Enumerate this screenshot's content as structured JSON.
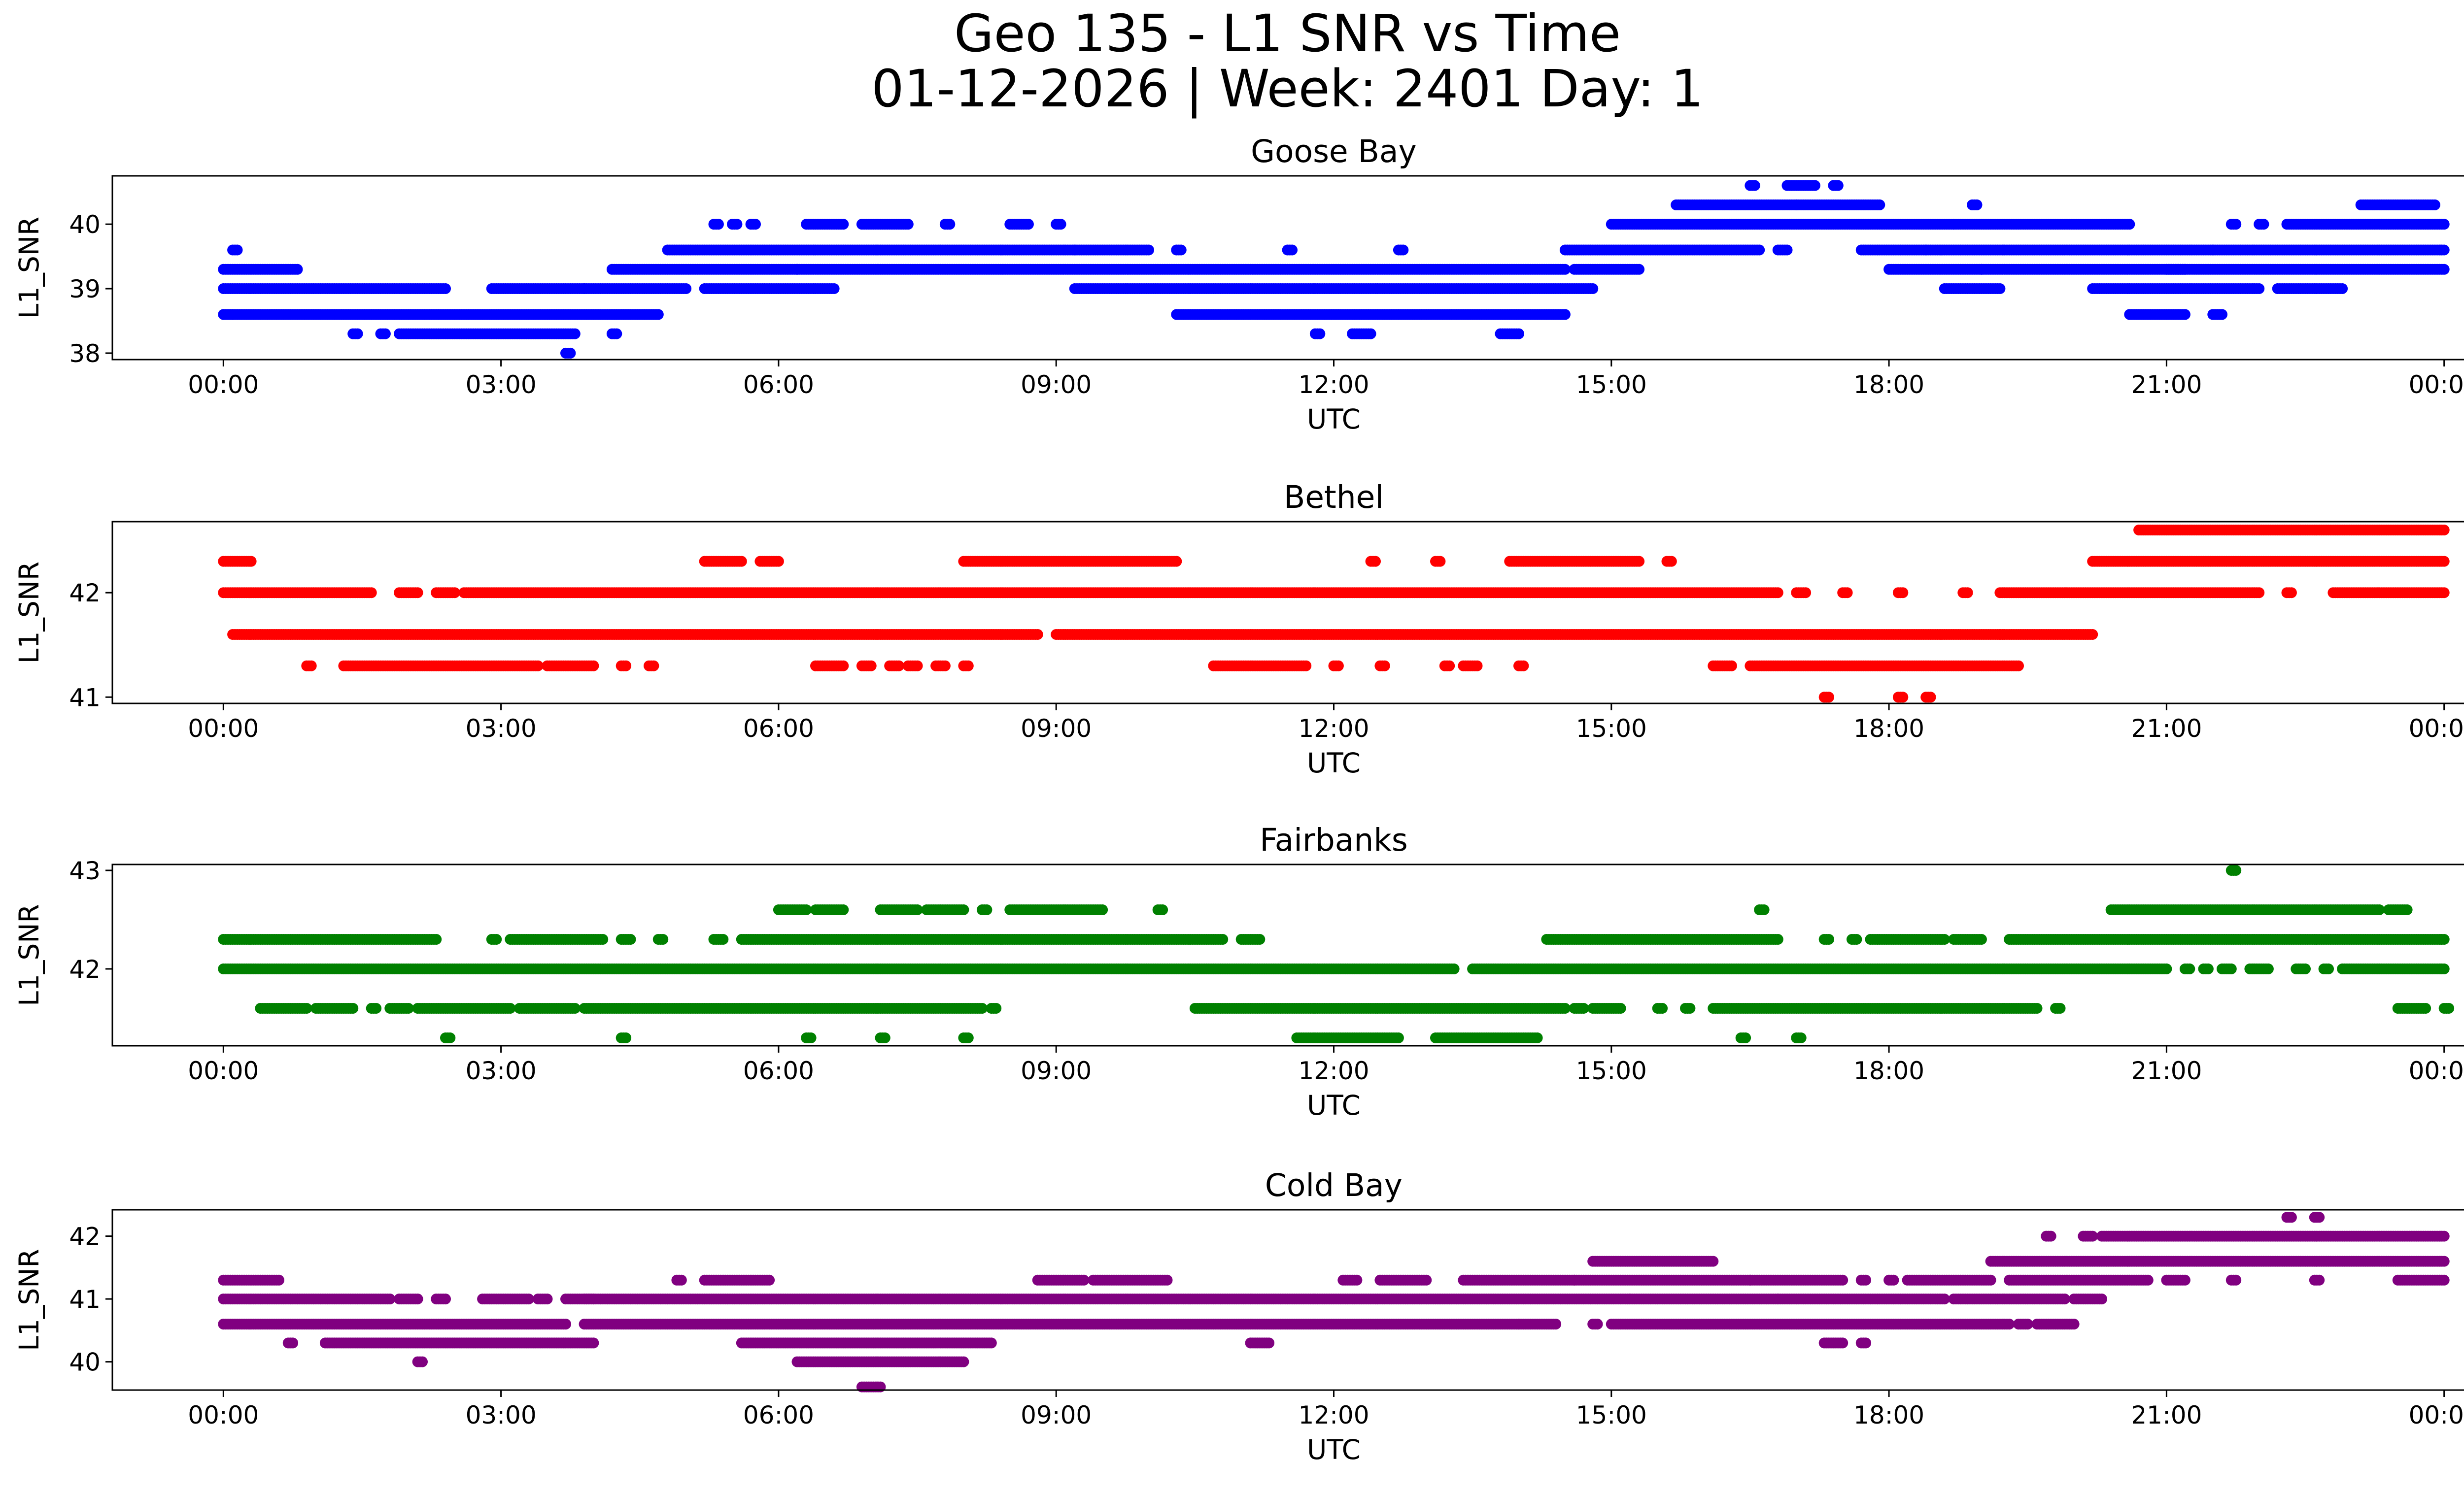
{
  "figure": {
    "title_line1": "Geo 135 - L1 SNR vs Time",
    "title_line2": "01-12-2026 | Week: 2401 Day: 1"
  },
  "chart_data": [
    {
      "type": "scatter",
      "title": "Goose Bay",
      "xlabel": "UTC",
      "ylabel": "L1_SNR",
      "color": "#0000ff",
      "xlim": [
        -1.2,
        25.2
      ],
      "ylim": [
        37.9,
        40.75
      ],
      "xticks": [
        0,
        3,
        6,
        9,
        12,
        15,
        18,
        21,
        24
      ],
      "xticklabels": [
        "00:00",
        "03:00",
        "06:00",
        "09:00",
        "12:00",
        "15:00",
        "18:00",
        "21:00",
        "00:00"
      ],
      "yticks": [
        38,
        39,
        40
      ],
      "yticklabels": [
        "38",
        "39",
        "40"
      ],
      "bands": [
        {
          "y": 39.3,
          "x": [
            [
              0,
              0.8
            ],
            [
              4.2,
              6.2
            ],
            [
              6.2,
              14.5
            ],
            [
              14.6,
              15.3
            ],
            [
              18.0,
              19.0
            ],
            [
              19.0,
              21.2
            ],
            [
              21.0,
              24
            ]
          ]
        },
        {
          "y": 39.0,
          "x": [
            [
              0,
              2.4
            ],
            [
              2.9,
              3.9
            ],
            [
              3.9,
              5.0
            ],
            [
              5.2,
              6.6
            ],
            [
              9.2,
              14.8
            ],
            [
              18.6,
              19.2
            ],
            [
              20.2,
              22.0
            ],
            [
              22.2,
              22.9
            ]
          ]
        },
        {
          "y": 38.6,
          "x": [
            [
              0,
              0.1
            ],
            [
              0.1,
              4.7
            ],
            [
              10.3,
              14.5
            ],
            [
              20.6,
              21.2
            ],
            [
              21.5,
              21.6
            ]
          ]
        },
        {
          "y": 38.3,
          "x": [
            [
              1.4,
              1.45
            ],
            [
              1.7,
              1.75
            ],
            [
              1.9,
              3.8
            ],
            [
              4.2,
              4.25
            ],
            [
              11.8,
              11.85
            ],
            [
              12.2,
              12.4
            ],
            [
              13.8,
              14.0
            ]
          ]
        },
        {
          "y": 39.6,
          "x": [
            [
              0.1,
              0.15
            ],
            [
              4.8,
              9.2
            ],
            [
              9.2,
              10.0
            ],
            [
              10.3,
              10.35
            ],
            [
              11.5,
              11.55
            ],
            [
              12.7,
              12.75
            ],
            [
              14.5,
              16.6
            ],
            [
              16.8,
              16.9
            ],
            [
              17.7,
              18.4
            ],
            [
              18.4,
              21.5
            ],
            [
              21.5,
              24
            ]
          ]
        },
        {
          "y": 40.0,
          "x": [
            [
              5.3,
              5.35
            ],
            [
              5.5,
              5.55
            ],
            [
              5.7,
              5.75
            ],
            [
              6.3,
              6.7
            ],
            [
              6.9,
              7.4
            ],
            [
              7.8,
              7.85
            ],
            [
              8.5,
              8.7
            ],
            [
              9.0,
              9.05
            ],
            [
              15.0,
              18.7
            ],
            [
              18.7,
              20.6
            ],
            [
              21.7,
              21.75
            ],
            [
              22.0,
              22.05
            ],
            [
              22.3,
              24
            ]
          ]
        },
        {
          "y": 40.3,
          "x": [
            [
              15.7,
              17.0
            ],
            [
              17.0,
              17.9
            ],
            [
              18.9,
              18.95
            ],
            [
              23.1,
              23.9
            ]
          ]
        },
        {
          "y": 40.6,
          "x": [
            [
              16.5,
              16.55
            ],
            [
              16.9,
              17.2
            ],
            [
              17.4,
              17.45
            ]
          ]
        },
        {
          "y": 38.0,
          "x": [
            [
              3.7,
              3.75
            ]
          ]
        }
      ]
    },
    {
      "type": "scatter",
      "title": "Bethel",
      "xlabel": "UTC",
      "ylabel": "L1_SNR",
      "color": "#ff0000",
      "xlim": [
        -1.2,
        25.2
      ],
      "ylim": [
        40.94,
        42.68
      ],
      "xticks": [
        0,
        3,
        6,
        9,
        12,
        15,
        18,
        21,
        24
      ],
      "xticklabels": [
        "00:00",
        "03:00",
        "06:00",
        "09:00",
        "12:00",
        "15:00",
        "18:00",
        "21:00",
        "00:00"
      ],
      "yticks": [
        41,
        42
      ],
      "yticklabels": [
        "41",
        "42"
      ],
      "bands": [
        {
          "y": 42.3,
          "x": [
            [
              0,
              0.3
            ],
            [
              5.2,
              5.6
            ],
            [
              5.8,
              6.0
            ],
            [
              8.0,
              10.3
            ],
            [
              12.4,
              12.45
            ],
            [
              13.1,
              13.15
            ],
            [
              13.9,
              15.3
            ],
            [
              15.6,
              15.65
            ],
            [
              20.2,
              24
            ]
          ]
        },
        {
          "y": 42.0,
          "x": [
            [
              0,
              1.6
            ],
            [
              1.9,
              2.1
            ],
            [
              2.3,
              2.5
            ],
            [
              2.6,
              16.8
            ],
            [
              17.0,
              17.1
            ],
            [
              17.5,
              17.55
            ],
            [
              18.1,
              18.15
            ],
            [
              18.8,
              18.85
            ],
            [
              19.2,
              22.0
            ],
            [
              22.3,
              22.35
            ],
            [
              22.8,
              24
            ]
          ]
        },
        {
          "y": 41.6,
          "x": [
            [
              0.1,
              8.8
            ],
            [
              9.0,
              19.2
            ],
            [
              19.2,
              20.2
            ]
          ]
        },
        {
          "y": 41.3,
          "x": [
            [
              0.9,
              0.95
            ],
            [
              1.3,
              3.4
            ],
            [
              3.5,
              4.0
            ],
            [
              4.3,
              4.35
            ],
            [
              4.6,
              4.65
            ],
            [
              6.4,
              6.7
            ],
            [
              6.9,
              7.0
            ],
            [
              7.2,
              7.3
            ],
            [
              7.4,
              7.5
            ],
            [
              7.7,
              7.8
            ],
            [
              8.0,
              8.05
            ],
            [
              10.7,
              11.7
            ],
            [
              12.0,
              12.05
            ],
            [
              12.5,
              12.55
            ],
            [
              13.2,
              13.25
            ],
            [
              13.4,
              13.55
            ],
            [
              14.0,
              14.05
            ],
            [
              16.1,
              16.3
            ],
            [
              16.5,
              19.4
            ]
          ]
        },
        {
          "y": 42.6,
          "x": [
            [
              20.7,
              24
            ]
          ]
        },
        {
          "y": 41.0,
          "x": [
            [
              17.3,
              17.35
            ],
            [
              18.1,
              18.15
            ],
            [
              18.4,
              18.45
            ]
          ]
        }
      ]
    },
    {
      "type": "scatter",
      "title": "Fairbanks",
      "xlabel": "UTC",
      "ylabel": "L1_SNR",
      "color": "#008000",
      "xlim": [
        -1.2,
        25.2
      ],
      "ylim": [
        41.22,
        43.06
      ],
      "xticks": [
        0,
        3,
        6,
        9,
        12,
        15,
        18,
        21,
        24
      ],
      "xticklabels": [
        "00:00",
        "03:00",
        "06:00",
        "09:00",
        "12:00",
        "15:00",
        "18:00",
        "21:00",
        "00:00"
      ],
      "yticks": [
        42,
        43
      ],
      "yticklabels": [
        "42",
        "43"
      ],
      "bands": [
        {
          "y": 42.0,
          "x": [
            [
              0,
              13.3
            ],
            [
              13.5,
              21.0
            ],
            [
              21.2,
              21.25
            ],
            [
              21.4,
              21.45
            ],
            [
              21.6,
              21.7
            ],
            [
              21.9,
              22.1
            ],
            [
              22.4,
              22.5
            ],
            [
              22.7,
              22.75
            ],
            [
              22.9,
              24
            ]
          ]
        },
        {
          "y": 42.3,
          "x": [
            [
              0,
              2.3
            ],
            [
              2.9,
              2.95
            ],
            [
              3.1,
              4.1
            ],
            [
              4.3,
              4.4
            ],
            [
              4.7,
              4.75
            ],
            [
              5.3,
              5.4
            ],
            [
              5.6,
              10.8
            ],
            [
              11.0,
              11.2
            ],
            [
              14.3,
              16.8
            ],
            [
              17.3,
              17.35
            ],
            [
              17.6,
              17.65
            ],
            [
              17.8,
              18.6
            ],
            [
              18.7,
              19.0
            ],
            [
              19.3,
              24
            ]
          ]
        },
        {
          "y": 41.6,
          "x": [
            [
              0.4,
              0.9
            ],
            [
              1.0,
              1.4
            ],
            [
              1.6,
              1.65
            ],
            [
              1.8,
              2.0
            ],
            [
              2.1,
              3.1
            ],
            [
              3.2,
              3.8
            ],
            [
              3.9,
              8.2
            ],
            [
              8.3,
              8.35
            ],
            [
              10.5,
              14.5
            ],
            [
              14.6,
              14.7
            ],
            [
              14.8,
              15.1
            ],
            [
              15.5,
              15.55
            ],
            [
              15.8,
              15.85
            ],
            [
              16.1,
              19.6
            ],
            [
              19.8,
              19.85
            ],
            [
              23.5,
              23.8
            ],
            [
              24.0,
              24.05
            ]
          ]
        },
        {
          "y": 42.6,
          "x": [
            [
              6.0,
              6.3
            ],
            [
              6.4,
              6.7
            ],
            [
              7.1,
              7.5
            ],
            [
              7.6,
              8.0
            ],
            [
              8.2,
              8.25
            ],
            [
              8.5,
              9.5
            ],
            [
              10.1,
              10.15
            ],
            [
              16.6,
              16.65
            ],
            [
              20.4,
              23.3
            ],
            [
              23.4,
              23.6
            ]
          ]
        },
        {
          "y": 41.3,
          "x": [
            [
              2.4,
              2.45
            ],
            [
              4.3,
              4.35
            ],
            [
              6.3,
              6.35
            ],
            [
              7.1,
              7.15
            ],
            [
              8.0,
              8.05
            ],
            [
              11.6,
              12.7
            ],
            [
              13.1,
              14.2
            ],
            [
              16.4,
              16.45
            ],
            [
              17.0,
              17.05
            ]
          ]
        },
        {
          "y": 43.0,
          "x": [
            [
              21.7,
              21.75
            ]
          ]
        }
      ]
    },
    {
      "type": "scatter",
      "title": "Cold Bay",
      "xlabel": "UTC",
      "ylabel": "L1_SNR",
      "color": "#800080",
      "xlim": [
        -1.2,
        25.2
      ],
      "ylim": [
        39.55,
        42.42
      ],
      "xticks": [
        0,
        3,
        6,
        9,
        12,
        15,
        18,
        21,
        24
      ],
      "xticklabels": [
        "00:00",
        "03:00",
        "06:00",
        "09:00",
        "12:00",
        "15:00",
        "18:00",
        "21:00",
        "00:00"
      ],
      "yticks": [
        40,
        41,
        42
      ],
      "yticklabels": [
        "40",
        "41",
        "42"
      ],
      "bands": [
        {
          "y": 41.0,
          "x": [
            [
              0,
              1.8
            ],
            [
              1.9,
              2.1
            ],
            [
              2.3,
              2.4
            ],
            [
              2.8,
              3.3
            ],
            [
              3.4,
              3.5
            ],
            [
              3.7,
              4.0
            ],
            [
              3.9,
              15.2
            ],
            [
              15.2,
              16.8
            ],
            [
              16.8,
              18.6
            ],
            [
              18.7,
              19.9
            ],
            [
              20.0,
              20.3
            ]
          ]
        },
        {
          "y": 40.6,
          "x": [
            [
              0,
              3.7
            ],
            [
              3.9,
              14.0
            ],
            [
              14.0,
              14.4
            ],
            [
              14.8,
              14.85
            ],
            [
              15.0,
              19.3
            ],
            [
              19.4,
              19.5
            ],
            [
              19.6,
              20.0
            ]
          ]
        },
        {
          "y": 40.3,
          "x": [
            [
              0.7,
              0.75
            ],
            [
              1.1,
              4.0
            ],
            [
              5.6,
              8.3
            ],
            [
              11.1,
              11.3
            ],
            [
              17.3,
              17.5
            ],
            [
              17.7,
              17.75
            ]
          ]
        },
        {
          "y": 41.3,
          "x": [
            [
              0,
              0.6
            ],
            [
              4.9,
              4.95
            ],
            [
              5.2,
              5.9
            ],
            [
              8.8,
              9.3
            ],
            [
              9.4,
              10.2
            ],
            [
              12.1,
              12.25
            ],
            [
              12.5,
              13.0
            ],
            [
              13.4,
              14.6
            ],
            [
              14.6,
              16.5
            ],
            [
              16.5,
              17.5
            ],
            [
              17.7,
              17.75
            ],
            [
              18.0,
              18.05
            ],
            [
              18.2,
              19.1
            ],
            [
              19.3,
              20.8
            ],
            [
              21.0,
              21.2
            ],
            [
              21.7,
              21.75
            ],
            [
              22.6,
              22.65
            ],
            [
              23.5,
              24
            ]
          ]
        },
        {
          "y": 41.6,
          "x": [
            [
              14.8,
              16.1
            ],
            [
              19.1,
              24
            ]
          ]
        },
        {
          "y": 40.0,
          "x": [
            [
              2.1,
              2.15
            ],
            [
              6.2,
              8.0
            ]
          ]
        },
        {
          "y": 42.0,
          "x": [
            [
              19.7,
              19.75
            ],
            [
              20.1,
              20.2
            ],
            [
              20.3,
              24
            ]
          ]
        },
        {
          "y": 39.6,
          "x": [
            [
              6.9,
              7.1
            ]
          ]
        },
        {
          "y": 42.3,
          "x": [
            [
              22.3,
              22.35
            ],
            [
              22.6,
              22.65
            ]
          ]
        }
      ]
    }
  ]
}
